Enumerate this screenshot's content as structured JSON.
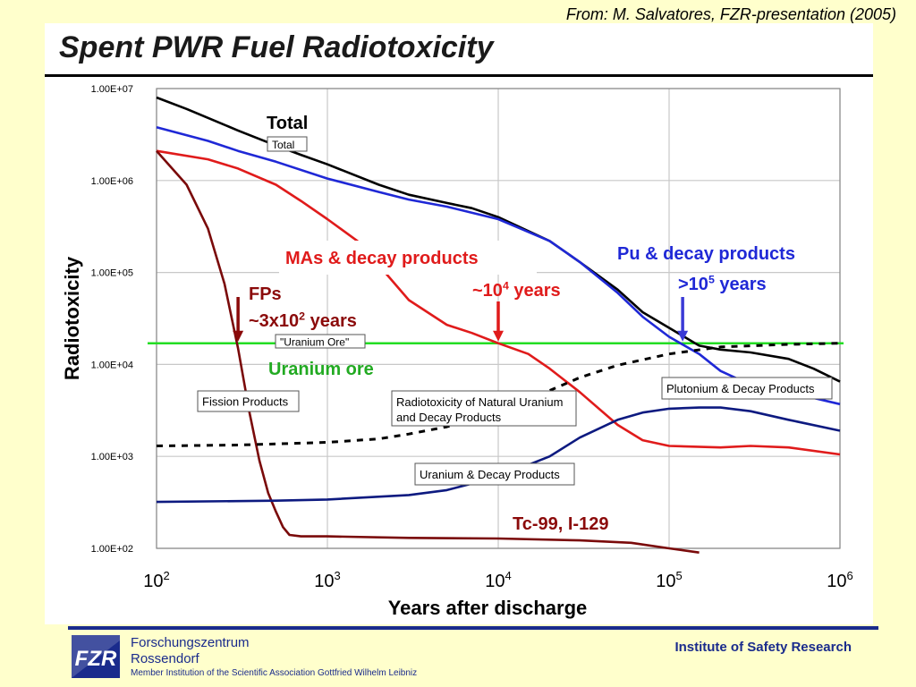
{
  "source_note": "From: M. Salvatores, FZR-presentation (2005)",
  "title": "Spent PWR Fuel Radiotoxicity",
  "chart_data": {
    "type": "line",
    "x_scale": "log",
    "y_scale": "log",
    "xlim": [
      100,
      1000000
    ],
    "ylim": [
      100,
      10000000
    ],
    "xlabel": "Years after discharge",
    "ylabel": "Radiotoxicity",
    "x_ticks": [
      {
        "value": 100,
        "base": "10",
        "exp": "2"
      },
      {
        "value": 1000,
        "base": "10",
        "exp": "3"
      },
      {
        "value": 10000,
        "base": "10",
        "exp": "4"
      },
      {
        "value": 100000,
        "base": "10",
        "exp": "5"
      },
      {
        "value": 1000000,
        "base": "10",
        "exp": "6"
      }
    ],
    "y_ticks": [
      {
        "value": 100,
        "label": "1.00E+02"
      },
      {
        "value": 1000,
        "label": "1.00E+03"
      },
      {
        "value": 10000,
        "label": "1.00E+04"
      },
      {
        "value": 100000,
        "label": "1.00E+05"
      },
      {
        "value": 1000000,
        "label": "1.00E+06"
      },
      {
        "value": 10000000,
        "label": "1.00E+07"
      }
    ],
    "grid": true,
    "series": [
      {
        "name": "Total",
        "color": "#000000",
        "dash": false,
        "x": [
          100,
          150,
          200,
          300,
          500,
          700,
          1000,
          2000,
          3000,
          5000,
          7000,
          10000,
          20000,
          30000,
          50000,
          70000,
          100000,
          150000,
          200000,
          300000,
          500000,
          700000,
          1000000
        ],
        "y": [
          8000000,
          6000000,
          4800000,
          3500000,
          2400000,
          1900000,
          1500000,
          900000,
          700000,
          570000,
          500000,
          400000,
          220000,
          130000,
          65000,
          37000,
          25000,
          16000,
          14500,
          13500,
          11500,
          9000,
          6500
        ]
      },
      {
        "name": "Plutonium & Decay Products",
        "color": "#1f28d6",
        "dash": false,
        "x": [
          100,
          200,
          300,
          500,
          1000,
          2000,
          3000,
          5000,
          10000,
          20000,
          30000,
          50000,
          70000,
          100000,
          150000,
          200000,
          300000,
          500000,
          1000000
        ],
        "y": [
          3800000,
          2700000,
          2100000,
          1600000,
          1050000,
          750000,
          620000,
          520000,
          380000,
          220000,
          130000,
          60000,
          33000,
          20000,
          13000,
          8500,
          6000,
          5000,
          3700
        ]
      },
      {
        "name": "MAs & decay products",
        "color": "#e01b1b",
        "dash": false,
        "x": [
          100,
          200,
          300,
          500,
          700,
          1000,
          1500,
          2000,
          3000,
          5000,
          7000,
          10000,
          15000,
          20000,
          30000,
          50000,
          70000,
          100000,
          200000,
          300000,
          500000,
          1000000
        ],
        "y": [
          2100000,
          1700000,
          1350000,
          900000,
          600000,
          380000,
          220000,
          120000,
          50000,
          27000,
          22000,
          17000,
          13000,
          9000,
          5000,
          2200,
          1500,
          1300,
          1250,
          1300,
          1250,
          1050
        ]
      },
      {
        "name": "Fission Products",
        "color": "#7a0a0a",
        "dash": false,
        "x": [
          100,
          150,
          200,
          250,
          300,
          350,
          400,
          450,
          500,
          550,
          600,
          700,
          1000,
          3000,
          10000,
          30000,
          60000,
          100000,
          150000
        ],
        "y": [
          2100000,
          900000,
          300000,
          75000,
          15000,
          3000,
          900,
          400,
          250,
          170,
          140,
          135,
          135,
          130,
          128,
          122,
          115,
          100,
          90
        ]
      },
      {
        "name": "Uranium & Decay Products",
        "color": "#0d1a80",
        "dash": false,
        "x": [
          100,
          500,
          1000,
          3000,
          5000,
          10000,
          20000,
          30000,
          50000,
          70000,
          100000,
          150000,
          200000,
          300000,
          500000,
          1000000
        ],
        "y": [
          320,
          330,
          340,
          380,
          430,
          600,
          1000,
          1600,
          2500,
          3000,
          3300,
          3400,
          3400,
          3100,
          2500,
          1900
        ]
      },
      {
        "name": "Radiotoxicity of Natural Uranium and Decay Products",
        "color": "#000000",
        "dash": true,
        "x": [
          100,
          300,
          1000,
          2000,
          3000,
          5000,
          7000,
          10000,
          20000,
          30000,
          50000,
          100000,
          200000,
          500000,
          1000000
        ],
        "y": [
          1300,
          1330,
          1420,
          1550,
          1750,
          2100,
          2500,
          3200,
          5200,
          7200,
          9800,
          13000,
          15500,
          16500,
          17000
        ]
      }
    ],
    "uranium_ore_line": {
      "value": 17000,
      "color": "#22dd22",
      "label": "Uranium ore"
    },
    "box_labels": [
      {
        "name": "total-box",
        "text": "Total"
      },
      {
        "name": "uranium-ore-box",
        "text": "\"Uranium Ore\""
      },
      {
        "name": "fission-products-box",
        "text": "Fission Products"
      },
      {
        "name": "natural-uranium-box",
        "text": "Radiotoxicity of Natural Uranium",
        "text2": "and Decay Products"
      },
      {
        "name": "plutonium-box",
        "text": "Plutonium & Decay Products"
      },
      {
        "name": "uranium-decay-box",
        "text": "Uranium & Decay Products"
      }
    ],
    "annotations": {
      "total": "Total",
      "mas": "MAs & decay products",
      "mas_years": "~10",
      "mas_years_exp": "4",
      "mas_years_unit": " years",
      "pu": "Pu & decay products",
      "pu_years": ">10",
      "pu_years_exp": "5",
      "pu_years_unit": " years",
      "fps": "FPs",
      "fps_years": "~3x10",
      "fps_years_exp": "2",
      "fps_years_unit": " years",
      "tc": "Tc-99, I-129"
    },
    "arrows": [
      {
        "name": "fps-arrow",
        "x": 300,
        "color": "#8b0a0a"
      },
      {
        "name": "mas-arrow",
        "x": 10000,
        "color": "#e01b1b"
      },
      {
        "name": "pu-arrow",
        "x": 120000,
        "color": "#3a3ad6"
      }
    ]
  },
  "footer": {
    "org_line1": "Forschungszentrum",
    "org_line2": "Rossendorf",
    "member": "Member Institution of the Scientific Association Gottfried Wilhelm Leibniz",
    "institute": "Institute of Safety Research",
    "logo_text": "FZR",
    "brand_color": "#1a2b8c"
  }
}
